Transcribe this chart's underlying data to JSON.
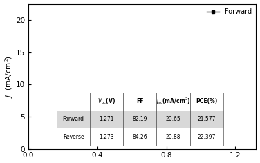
{
  "ylabel": "J （mA/cm²）",
  "xlim": [
    0.0,
    1.32
  ],
  "ylim": [
    0,
    22.5
  ],
  "yticks": [
    0,
    5,
    10,
    15,
    20
  ],
  "xticks": [
    0.0,
    0.4,
    0.8,
    1.2
  ],
  "forward_color": "#000000",
  "reverse_color": "#cc0000",
  "forward_Jsc": 20.65,
  "forward_Voc": 1.271,
  "forward_FF": 82.19,
  "reverse_Jsc": 20.88,
  "reverse_Voc": 1.273,
  "reverse_FF": 84.26,
  "col_labels": [
    "",
    "V_oc(V)",
    "FF",
    "J_sc(mA/cm²)",
    "PCE(%)"
  ],
  "row_forward": [
    "Forward",
    "1.271",
    "82.19",
    "20.65",
    "21.577"
  ],
  "row_reverse": [
    "Reverse",
    "1.273",
    "84.26",
    "20.88",
    "22.397"
  ]
}
